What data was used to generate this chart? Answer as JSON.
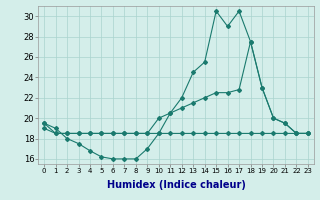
{
  "xlabel": "Humidex (Indice chaleur)",
  "bg_color": "#d4eeea",
  "grid_color": "#aad4ce",
  "line_color": "#1a7a6e",
  "xlim": [
    -0.5,
    23.5
  ],
  "ylim": [
    15.5,
    31.0
  ],
  "yticks": [
    16,
    18,
    20,
    22,
    24,
    26,
    28,
    30
  ],
  "xticks": [
    0,
    1,
    2,
    3,
    4,
    5,
    6,
    7,
    8,
    9,
    10,
    11,
    12,
    13,
    14,
    15,
    16,
    17,
    18,
    19,
    20,
    21,
    22,
    23
  ],
  "curve1_x": [
    0,
    1,
    2,
    3,
    4,
    5,
    6,
    7,
    8,
    9,
    10,
    11,
    12,
    13,
    14,
    15,
    16,
    17,
    18,
    19,
    20,
    21,
    22,
    23
  ],
  "curve1_y": [
    19.5,
    19.0,
    18.0,
    17.5,
    16.8,
    16.2,
    16.0,
    16.0,
    16.0,
    17.0,
    18.5,
    20.5,
    22.0,
    24.5,
    25.5,
    30.5,
    29.0,
    30.5,
    27.5,
    23.0,
    20.0,
    19.5,
    18.5,
    18.5
  ],
  "curve2_x": [
    0,
    1,
    2,
    3,
    4,
    5,
    6,
    7,
    8,
    9,
    10,
    11,
    12,
    13,
    14,
    15,
    16,
    17,
    18,
    19,
    20,
    21,
    22,
    23
  ],
  "curve2_y": [
    19.5,
    18.5,
    18.5,
    18.5,
    18.5,
    18.5,
    18.5,
    18.5,
    18.5,
    18.5,
    20.0,
    20.5,
    21.0,
    21.5,
    22.0,
    22.5,
    22.5,
    22.8,
    27.5,
    23.0,
    20.0,
    19.5,
    18.5,
    18.5
  ],
  "curve3_x": [
    0,
    1,
    2,
    3,
    4,
    5,
    6,
    7,
    8,
    9,
    10,
    11,
    12,
    13,
    14,
    15,
    16,
    17,
    18,
    19,
    20,
    21,
    22,
    23
  ],
  "curve3_y": [
    19.0,
    18.5,
    18.5,
    18.5,
    18.5,
    18.5,
    18.5,
    18.5,
    18.5,
    18.5,
    18.5,
    18.5,
    18.5,
    18.5,
    18.5,
    18.5,
    18.5,
    18.5,
    18.5,
    18.5,
    18.5,
    18.5,
    18.5,
    18.5
  ],
  "xlabel_color": "#00008b",
  "xlabel_fontsize": 7,
  "tick_fontsize": 5,
  "ytick_fontsize": 6
}
